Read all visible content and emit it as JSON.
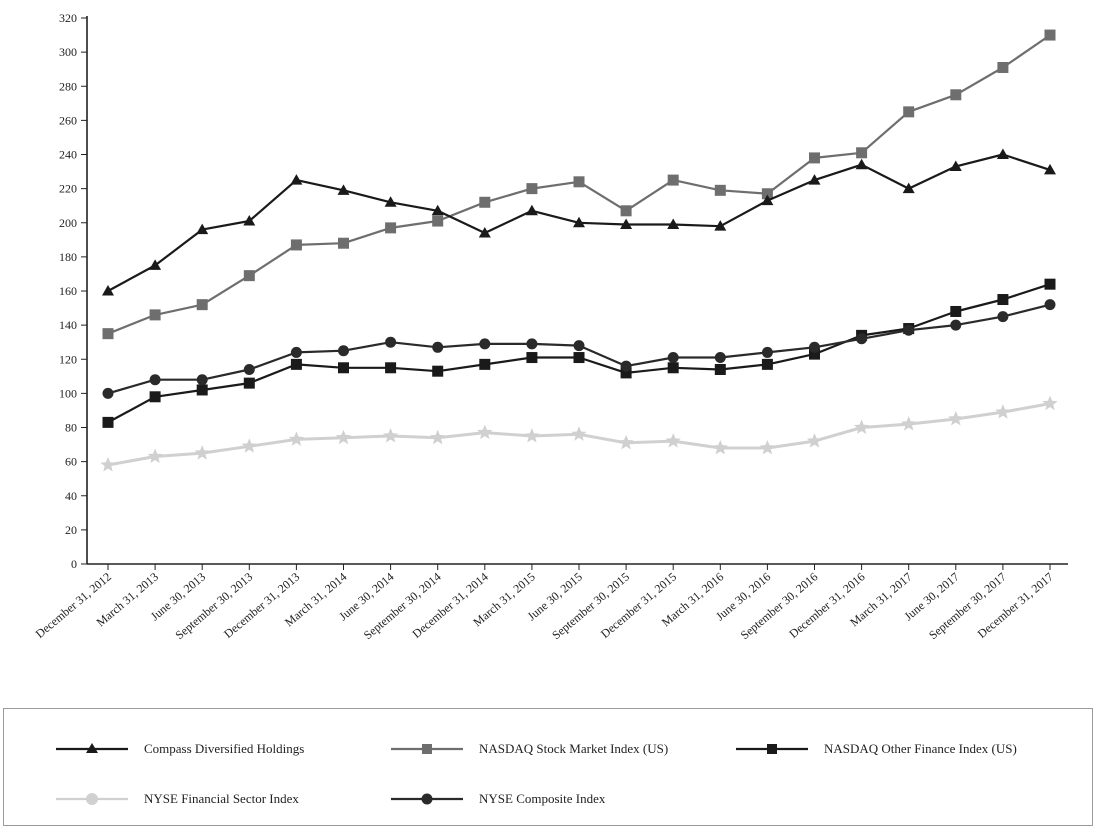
{
  "chart_data": {
    "type": "line",
    "title": "",
    "xlabel": "",
    "ylabel": "",
    "ylim": [
      0,
      320
    ],
    "yticks": [
      0,
      20,
      40,
      60,
      80,
      100,
      120,
      140,
      160,
      180,
      200,
      220,
      240,
      260,
      280,
      300,
      320
    ],
    "grid": false,
    "legend_position": "bottom",
    "categories": [
      "December 31, 2012",
      "March 31, 2013",
      "June 30, 2013",
      "September 30, 2013",
      "December 31, 2013",
      "March 31, 2014",
      "June 30, 2014",
      "September 30, 2014",
      "December 31, 2014",
      "March 31, 2015",
      "June 30, 2015",
      "September 30, 2015",
      "December 31, 2015",
      "March 31, 2016",
      "June 30, 2016",
      "September 30, 2016",
      "December 31, 2016",
      "March 31, 2017",
      "June 30, 2017",
      "September 30, 2017",
      "December 31, 2017"
    ],
    "series": [
      {
        "name": "Compass Diversified Holdings",
        "marker": "triangle",
        "color": "#1a1a1a",
        "values": [
          160,
          175,
          196,
          201,
          225,
          219,
          212,
          207,
          194,
          207,
          200,
          199,
          199,
          198,
          213,
          225,
          234,
          220,
          233,
          240,
          231
        ]
      },
      {
        "name": "NASDAQ Stock Market Index (US)",
        "marker": "square",
        "color": "#6e6e6e",
        "values": [
          135,
          146,
          152,
          169,
          187,
          188,
          197,
          201,
          212,
          220,
          224,
          207,
          225,
          219,
          217,
          238,
          241,
          265,
          275,
          291,
          310
        ]
      },
      {
        "name": "NASDAQ Other Finance Index (US)",
        "marker": "square",
        "color": "#1a1a1a",
        "values": [
          83,
          98,
          102,
          106,
          117,
          115,
          115,
          113,
          117,
          121,
          121,
          112,
          115,
          114,
          117,
          123,
          134,
          138,
          148,
          155,
          164
        ]
      },
      {
        "name": "NYSE Financial Sector Index",
        "marker": "star",
        "color": "#d0d0d0",
        "values": [
          58,
          63,
          65,
          69,
          73,
          74,
          75,
          74,
          77,
          75,
          76,
          71,
          72,
          68,
          68,
          72,
          80,
          82,
          85,
          89,
          94
        ]
      },
      {
        "name": "NYSE Composite Index",
        "marker": "circle",
        "color": "#2a2a2a",
        "values": [
          100,
          108,
          108,
          114,
          124,
          125,
          130,
          127,
          129,
          129,
          128,
          116,
          121,
          121,
          124,
          127,
          132,
          137,
          140,
          145,
          152
        ]
      }
    ]
  }
}
